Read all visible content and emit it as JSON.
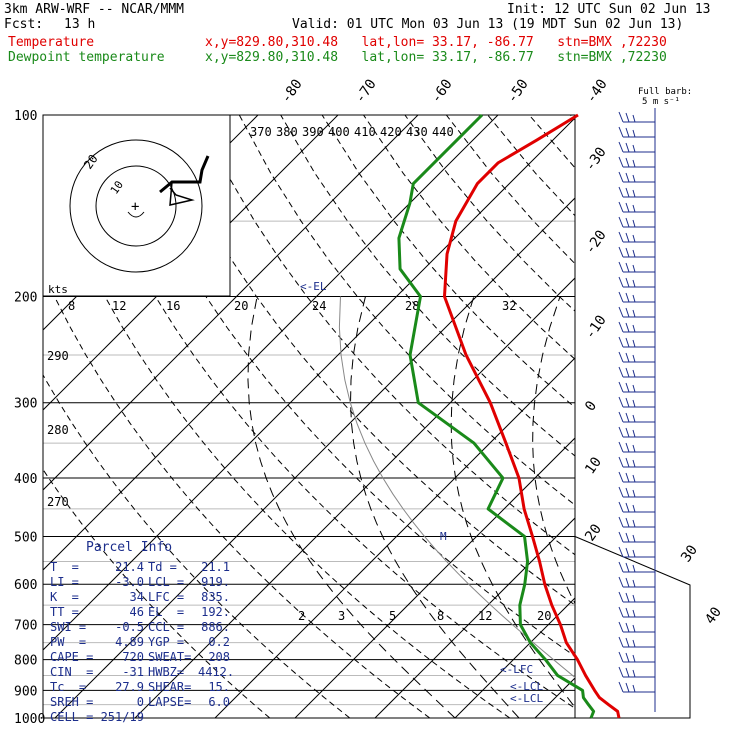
{
  "header": {
    "model": "3km ARW-WRF -- NCAR/MMM",
    "init": "Init: 12 UTC Sun 02 Jun 13",
    "fcst_label": "Fcst:",
    "fcst_value": "13 h",
    "valid": "Valid: 01 UTC Mon 03 Jun 13 (19 MDT Sun 02 Jun 13)",
    "temp_label": "Temperature",
    "dew_label": "Dewpoint temperature",
    "loc_line": "x,y=829.80,310.48   lat,lon= 33.17, -86.77   stn=BMX ,72230",
    "colors": {
      "temperature": "#e00000",
      "dewpoint": "#1a8a1a",
      "text": "#1c2e8c"
    }
  },
  "barb_note": {
    "line1": "Full barb:",
    "line2": "5 m s⁻¹"
  },
  "hodograph": {
    "units": "kts",
    "ring_labels": [
      "20",
      "10"
    ]
  },
  "parcel_info": {
    "title": "Parcel Info",
    "rows": [
      [
        "T  =",
        "21.4",
        "Td =",
        "21.1"
      ],
      [
        "LI =",
        "-3.0",
        "LCL =",
        "919."
      ],
      [
        "K  =",
        "34",
        "LFC =",
        "835."
      ],
      [
        "TT =",
        "46",
        "EL  =",
        "192."
      ],
      [
        "SWI =",
        "-0.5",
        "CCL =",
        "886."
      ],
      [
        "PW  =",
        "4.89",
        "YGP =",
        "0.2"
      ],
      [
        "CAPE =",
        "720",
        "SWEAT=",
        "208"
      ],
      [
        "CIN  =",
        "-31",
        "HWBZ=",
        "4412."
      ],
      [
        "Tc  =",
        "27.9",
        "SHEAR=",
        "15."
      ],
      [
        "SREH =",
        "0",
        "LAPSE=",
        "6.0"
      ]
    ],
    "cell": "CELL = 251/19"
  },
  "chart_data": {
    "type": "line",
    "chart_kind": "skew-T log-p",
    "y_axis": {
      "label": "",
      "scale": "log",
      "range": [
        1000,
        100
      ],
      "ticks": [
        "100",
        "200",
        "300",
        "400",
        "500",
        "600",
        "700",
        "800",
        "900",
        "1000"
      ]
    },
    "x_axis": {
      "range": [
        -40,
        40
      ],
      "ticks": [
        "-40",
        "-30",
        "-20",
        "-10",
        "0",
        "10",
        "20",
        "30",
        "40"
      ],
      "top_ticks": [
        "-80",
        "-70",
        "-60",
        "-50",
        "-40"
      ]
    },
    "theta_labels": [
      "370",
      "380",
      "390",
      "400",
      "410",
      "420",
      "430",
      "440"
    ],
    "left_labels": [
      "300",
      "290",
      "280",
      "270"
    ],
    "mixing_ratio_labels_upper": [
      "8",
      "12",
      "16",
      "20",
      "24",
      "28",
      "32"
    ],
    "mixing_ratio_labels_lower": [
      "2",
      "3",
      "5",
      "8",
      "12",
      "20"
    ],
    "levels": {
      "el": "<-EL",
      "lfc": "<-LFC",
      "lcl": "<-LCL",
      "m": "M"
    },
    "series": [
      {
        "name": "Temperature",
        "points": [
          [
            1000,
            20.5
          ],
          [
            975,
            19.5
          ],
          [
            950,
            17.5
          ],
          [
            925,
            15.5
          ],
          [
            900,
            14
          ],
          [
            850,
            11
          ],
          [
            800,
            8
          ],
          [
            750,
            4.5
          ],
          [
            700,
            1.5
          ],
          [
            650,
            -2
          ],
          [
            600,
            -5.5
          ],
          [
            550,
            -9
          ],
          [
            500,
            -13
          ],
          [
            450,
            -17.5
          ],
          [
            400,
            -22
          ],
          [
            350,
            -28
          ],
          [
            300,
            -35
          ],
          [
            250,
            -44
          ],
          [
            200,
            -54
          ],
          [
            170,
            -59
          ],
          [
            150,
            -62
          ],
          [
            130,
            -64
          ],
          [
            120,
            -64
          ],
          [
            110,
            -62
          ],
          [
            100,
            -60
          ]
        ]
      },
      {
        "name": "Dewpoint temperature",
        "points": [
          [
            1000,
            17
          ],
          [
            975,
            16.5
          ],
          [
            950,
            15
          ],
          [
            925,
            13.5
          ],
          [
            900,
            12.5
          ],
          [
            850,
            7.5
          ],
          [
            800,
            4
          ],
          [
            750,
            0
          ],
          [
            700,
            -3.5
          ],
          [
            650,
            -6
          ],
          [
            600,
            -8
          ],
          [
            550,
            -10.5
          ],
          [
            500,
            -14
          ],
          [
            450,
            -22
          ],
          [
            400,
            -24
          ],
          [
            350,
            -32
          ],
          [
            300,
            -44
          ],
          [
            250,
            -51
          ],
          [
            200,
            -57
          ],
          [
            180,
            -63
          ],
          [
            160,
            -67
          ],
          [
            140,
            -70
          ],
          [
            130,
            -72
          ],
          [
            115,
            -72
          ],
          [
            100,
            -72
          ]
        ]
      }
    ],
    "grid": true
  }
}
